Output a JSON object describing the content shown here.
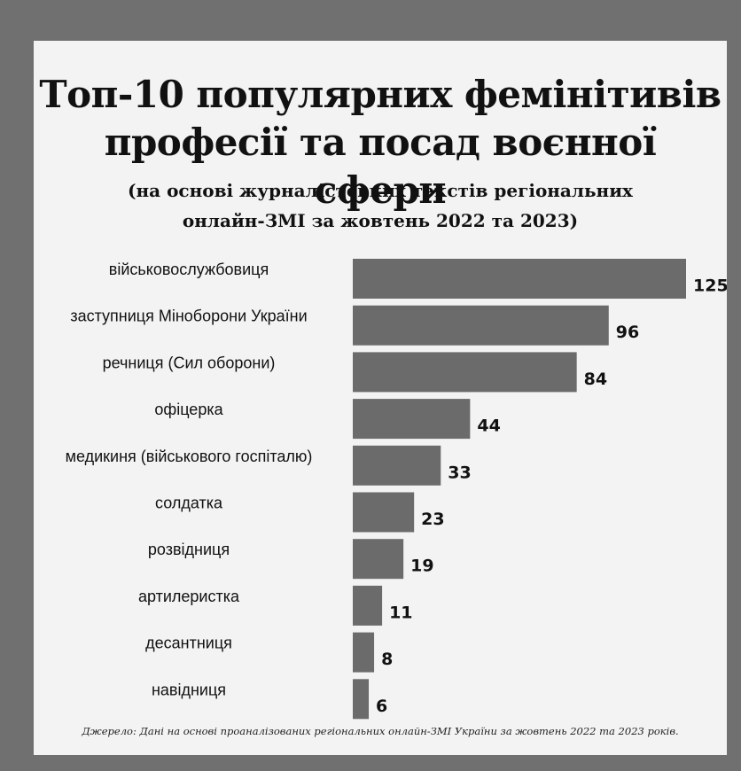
{
  "chart_data": {
    "type": "bar",
    "orientation": "horizontal",
    "title": "Топ-10 популярних фемінітивів професії та посад воєнної сфери",
    "title_lines": [
      "Топ-10 популярних фемінітивів",
      "професії та посад воєнної сфери"
    ],
    "subtitle_lines": [
      "(на основі журналістських текстів регіональних",
      "онлайн-ЗМІ за жовтень 2022 та 2023)"
    ],
    "categories": [
      "військовослужбовиця",
      "заступниця Міноборони України",
      "речниця (Сил оборони)",
      "офіцерка",
      "медикиня (військового госпіталю)",
      "солдатка",
      "розвідниця",
      "артилеристка",
      "десантниця",
      "навідниця"
    ],
    "values": [
      125,
      96,
      84,
      44,
      33,
      23,
      19,
      11,
      8,
      6
    ],
    "bar_color": "#6b6b6b",
    "grid": false,
    "source": "Джерело: Дані на основі проаналізованих регіональних онлайн-ЗМІ України за жовтень 2022 та 2023 років."
  }
}
